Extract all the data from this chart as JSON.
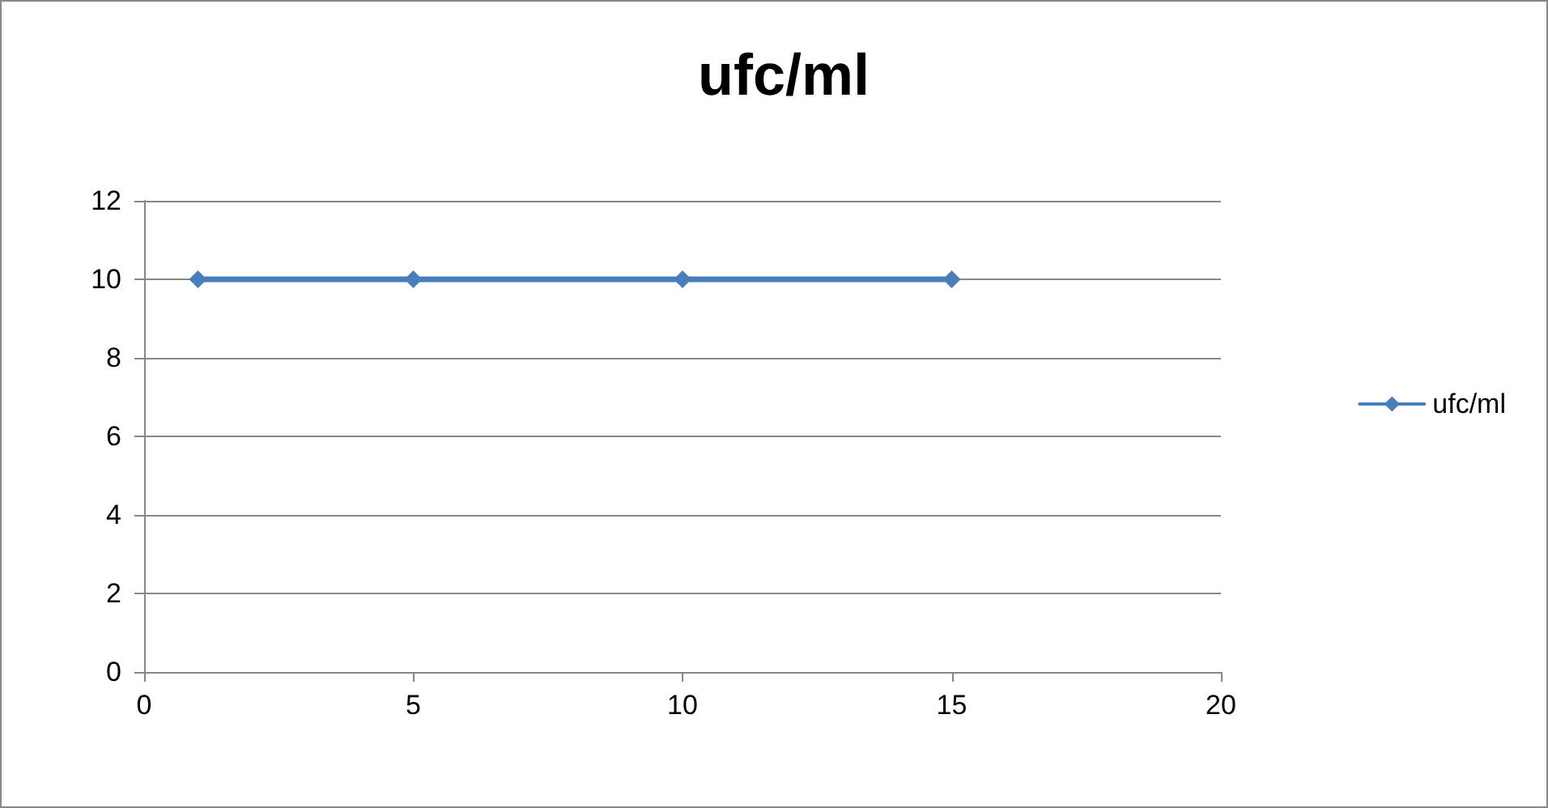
{
  "chart_data": {
    "type": "line",
    "title": "ufc/ml",
    "x": [
      1,
      5,
      10,
      15
    ],
    "series": [
      {
        "name": "ufc/ml",
        "color": "#4a7ebb",
        "values": [
          10,
          10,
          10,
          10
        ]
      }
    ],
    "xlim": [
      0,
      20
    ],
    "xticks": [
      0,
      5,
      10,
      15,
      20
    ],
    "ylim": [
      0,
      12
    ],
    "yticks": [
      0,
      2,
      4,
      6,
      8,
      10,
      12
    ],
    "grid": "y",
    "legend": "right",
    "marker": "diamond",
    "line_style": "solid"
  }
}
